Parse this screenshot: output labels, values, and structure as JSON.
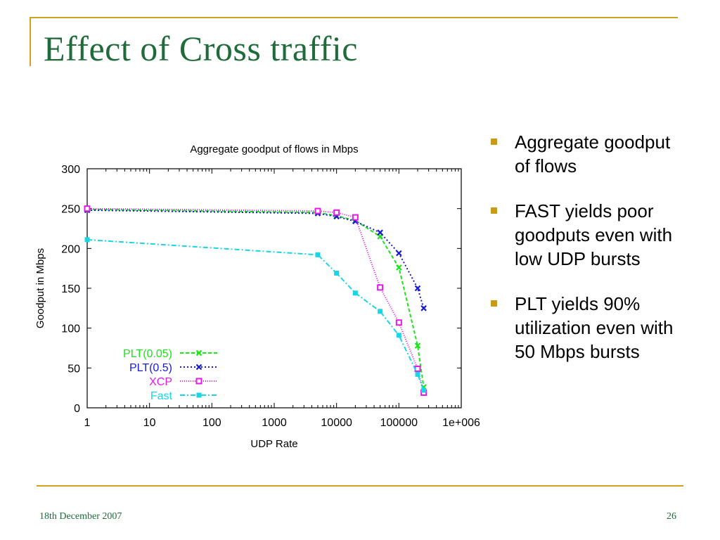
{
  "slide": {
    "title": "Effect of Cross traffic",
    "bullets": [
      "Aggregate goodput of flows",
      "FAST yields poor goodputs even with low UDP bursts",
      "PLT yields 90% utilization even with 50 Mbps bursts"
    ],
    "footer_date": "18th December 2007",
    "page_number": "26",
    "accent_color": "#d4a020",
    "title_color": "#1f6b3a"
  },
  "chart_data": {
    "type": "line",
    "title": "Aggregate goodput of flows in Mbps",
    "xlabel": "UDP Rate",
    "ylabel": "Goodput in Mbps",
    "x_scale": "log",
    "xlim": [
      1,
      1000000
    ],
    "ylim": [
      0,
      300
    ],
    "x_ticks": [
      1,
      10,
      100,
      1000,
      10000,
      100000,
      1000000
    ],
    "x_tick_labels": [
      "1",
      "10",
      "100",
      "1000",
      "10000",
      "100000",
      "1e+006"
    ],
    "y_ticks": [
      0,
      50,
      100,
      150,
      200,
      250,
      300
    ],
    "y_tick_labels": [
      "0",
      "50",
      "100",
      "150",
      "200",
      "250",
      "300"
    ],
    "grid": false,
    "legend_position": "bottom-left",
    "series": [
      {
        "name": "PLT(0.05)",
        "color": "#19e619",
        "marker": "x",
        "dash": "5,3",
        "points": [
          [
            1,
            249
          ],
          [
            5000,
            245
          ],
          [
            10000,
            241
          ],
          [
            20000,
            235
          ],
          [
            50000,
            215
          ],
          [
            100000,
            176
          ],
          [
            200000,
            78
          ],
          [
            250000,
            26
          ]
        ]
      },
      {
        "name": "PLT(0.5)",
        "color": "#1a1ad6",
        "marker": "x",
        "dash": "2,3",
        "points": [
          [
            1,
            248
          ],
          [
            5000,
            244
          ],
          [
            10000,
            240
          ],
          [
            20000,
            234
          ],
          [
            50000,
            220
          ],
          [
            100000,
            194
          ],
          [
            200000,
            150
          ],
          [
            250000,
            125
          ]
        ]
      },
      {
        "name": "XCP",
        "color": "#e619e6",
        "marker": "square",
        "dash": "1,2",
        "points": [
          [
            1,
            250
          ],
          [
            5000,
            247
          ],
          [
            10000,
            245
          ],
          [
            20000,
            239
          ],
          [
            50000,
            151
          ],
          [
            100000,
            107
          ],
          [
            200000,
            49
          ],
          [
            250000,
            19
          ]
        ]
      },
      {
        "name": "Fast",
        "color": "#19d6e6",
        "marker": "filled-square",
        "dash": "7,3,2,3",
        "points": [
          [
            1,
            211
          ],
          [
            5000,
            192
          ],
          [
            10000,
            169
          ],
          [
            20000,
            144
          ],
          [
            50000,
            121
          ],
          [
            100000,
            91
          ],
          [
            200000,
            42
          ],
          [
            250000,
            22
          ]
        ]
      }
    ]
  }
}
